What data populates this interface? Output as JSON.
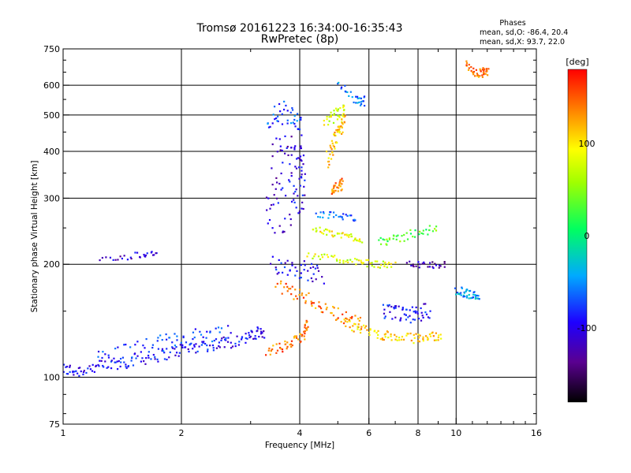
{
  "chart_data": {
    "type": "scatter",
    "title": "Tromsø 20161223 16:34:00-16:35:43",
    "subtitle": "RwPretec (8p)",
    "xlabel": "Frequency [MHz]",
    "ylabel": "Stationary phase Virtual Height [km]",
    "x_scale": "log",
    "y_scale": "log",
    "xlim": [
      1,
      16
    ],
    "ylim": [
      75,
      750
    ],
    "x_ticks": [
      1,
      2,
      4,
      6,
      8,
      10,
      16
    ],
    "x_tick_labels": [
      "1",
      "2",
      "4",
      "6",
      "8",
      "10",
      "16"
    ],
    "y_ticks": [
      75,
      100,
      200,
      300,
      400,
      500,
      600,
      750
    ],
    "y_tick_labels": [
      "75",
      "100",
      "200",
      "300",
      "400",
      "500",
      "600",
      "750"
    ],
    "grid": true,
    "stats": {
      "heading": "Phases",
      "line_o": "mean, sd,O: -86.4, 20.4",
      "line_x": "mean, sd,X:  93.7, 22.0"
    },
    "colorbar": {
      "label": "[deg]",
      "range": [
        -180,
        180
      ],
      "ticks": [
        100,
        0,
        -100
      ],
      "tick_labels": [
        "100",
        "0",
        "-100"
      ]
    },
    "traces": [
      {
        "points": [
          [
            1.0,
            105
          ],
          [
            1.08,
            104
          ],
          [
            1.2,
            106
          ],
          [
            1.35,
            108
          ],
          [
            1.5,
            111
          ],
          [
            1.7,
            114
          ],
          [
            1.9,
            117
          ],
          [
            2.1,
            120
          ],
          [
            2.35,
            122
          ],
          [
            2.6,
            124
          ],
          [
            2.9,
            127
          ],
          [
            3.1,
            130
          ],
          [
            3.25,
            133
          ]
        ],
        "phase": -95,
        "spread": 0.04
      },
      {
        "points": [
          [
            1.2,
            112
          ],
          [
            1.45,
            118
          ],
          [
            1.75,
            123
          ],
          [
            2.0,
            127
          ],
          [
            2.3,
            130
          ],
          [
            2.7,
            133
          ]
        ],
        "phase": -80,
        "spread": 0.05
      },
      {
        "points": [
          [
            3.3,
            280
          ],
          [
            3.5,
            290
          ],
          [
            3.8,
            300
          ],
          [
            4.0,
            310
          ],
          [
            4.15,
            320
          ]
        ],
        "phase": -100,
        "spread": 0.18
      },
      {
        "points": [
          [
            3.4,
            380
          ],
          [
            3.7,
            400
          ],
          [
            3.95,
            390
          ],
          [
            4.1,
            360
          ]
        ],
        "phase": -110,
        "spread": 0.12
      },
      {
        "points": [
          [
            3.3,
            480
          ],
          [
            3.6,
            510
          ],
          [
            3.9,
            480
          ],
          [
            4.05,
            450
          ]
        ],
        "phase": -70,
        "spread": 0.08
      },
      {
        "points": [
          [
            3.4,
            200
          ],
          [
            3.8,
            198
          ],
          [
            4.2,
            192
          ],
          [
            4.6,
            188
          ]
        ],
        "phase": -95,
        "spread": 0.06
      },
      {
        "points": [
          [
            3.3,
            118
          ],
          [
            3.6,
            120
          ],
          [
            3.9,
            125
          ],
          [
            4.1,
            130
          ],
          [
            4.2,
            140
          ]
        ],
        "phase": 140,
        "spread": 0.03
      },
      {
        "points": [
          [
            3.5,
            175
          ],
          [
            3.9,
            168
          ],
          [
            4.3,
            160
          ],
          [
            4.8,
            150
          ],
          [
            5.3,
            143
          ],
          [
            5.8,
            138
          ]
        ],
        "phase": 140,
        "spread": 0.04
      },
      {
        "points": [
          [
            5.2,
            140
          ],
          [
            5.8,
            134
          ],
          [
            6.4,
            130
          ],
          [
            7.0,
            128
          ],
          [
            7.8,
            127
          ],
          [
            8.5,
            128
          ],
          [
            9.2,
            130
          ]
        ],
        "phase": 110,
        "spread": 0.03
      },
      {
        "points": [
          [
            4.3,
            248
          ],
          [
            4.8,
            242
          ],
          [
            5.3,
            238
          ],
          [
            5.8,
            232
          ]
        ],
        "phase": 90,
        "spread": 0.02
      },
      {
        "points": [
          [
            4.2,
            212
          ],
          [
            4.9,
            207
          ],
          [
            5.6,
            203
          ],
          [
            6.3,
            200
          ],
          [
            7.0,
            199
          ]
        ],
        "phase": 80,
        "spread": 0.02
      },
      {
        "points": [
          [
            4.4,
            272
          ],
          [
            5.0,
            270
          ],
          [
            5.6,
            265
          ]
        ],
        "phase": -60,
        "spread": 0.02
      },
      {
        "points": [
          [
            4.7,
            380
          ],
          [
            4.85,
            410
          ],
          [
            5.0,
            440
          ],
          [
            5.1,
            470
          ],
          [
            5.2,
            510
          ]
        ],
        "phase": 110,
        "spread": 0.05
      },
      {
        "points": [
          [
            4.6,
            470
          ],
          [
            4.95,
            500
          ],
          [
            5.2,
            520
          ]
        ],
        "phase": 80,
        "spread": 0.04
      },
      {
        "points": [
          [
            4.8,
            310
          ],
          [
            5.0,
            320
          ],
          [
            5.15,
            330
          ]
        ],
        "phase": 140,
        "spread": 0.04
      },
      {
        "points": [
          [
            5.0,
            600
          ],
          [
            5.6,
            545
          ],
          [
            5.9,
            545
          ]
        ],
        "phase": -60,
        "spread": 0.03
      },
      {
        "points": [
          [
            6.5,
            150
          ],
          [
            7.0,
            148
          ],
          [
            7.5,
            146
          ],
          [
            8.0,
            148
          ],
          [
            8.6,
            152
          ]
        ],
        "phase": -90,
        "spread": 0.05
      },
      {
        "points": [
          [
            6.4,
            232
          ],
          [
            7.0,
            232
          ],
          [
            8.0,
            245
          ],
          [
            9.0,
            248
          ]
        ],
        "phase": 30,
        "spread": 0.03
      },
      {
        "points": [
          [
            7.5,
            200
          ],
          [
            8.5,
            199
          ],
          [
            9.5,
            200
          ]
        ],
        "phase": -120,
        "spread": 0.02
      },
      {
        "points": [
          [
            10.0,
            170
          ],
          [
            10.5,
            168
          ],
          [
            11.0,
            165
          ],
          [
            11.5,
            167
          ]
        ],
        "phase": -50,
        "spread": 0.03
      },
      {
        "points": [
          [
            10.6,
            680
          ],
          [
            11.2,
            640
          ],
          [
            11.8,
            650
          ],
          [
            12.0,
            660
          ]
        ],
        "phase": 140,
        "spread": 0.03
      },
      {
        "points": [
          [
            1.25,
            205
          ],
          [
            1.55,
            212
          ],
          [
            1.75,
            215
          ]
        ],
        "phase": -110,
        "spread": 0.02
      }
    ]
  }
}
